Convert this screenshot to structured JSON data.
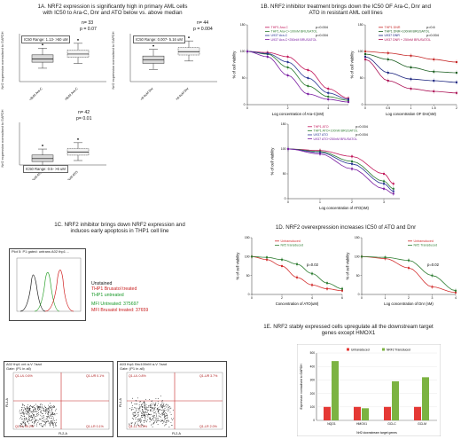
{
  "p1a": {
    "title_line1": "1A. NRF2 expression is significantly high in primary AML cells",
    "title_line2": "with IC50 to Ara-C, Dnr and ATO below vs. above median",
    "ylabel": "Nrf2 expression normalised to GAPDH",
    "plot1": {
      "n": "n= 33",
      "p": "p = 0.07",
      "range": "IC50 Range: 1.13- >50 uM",
      "cats": [
        "<8uM Ara-C",
        ">8uM Ara-C"
      ]
    },
    "plot2": {
      "n": "n= 44",
      "p": "p = 0.004",
      "range": "IC50 Range: 0.007- 5.16 uM",
      "cats": [
        "<0.4uM Dnr",
        ">0.4uM Dnr"
      ]
    },
    "plot3": {
      "n": "n= 42",
      "p": "p= 0.01",
      "range": "IC50 Range: 0.5- >6 uM",
      "cats": [
        "<2.6uM ATO",
        ">2.6uM ATO"
      ]
    }
  },
  "p1b": {
    "title_line1": "1B. NRF2 inhibitor treatment brings down the IC50 OF Ara-C, Dnr and",
    "title_line2": "ATO in resistant AML cell lines",
    "ylabel": "% of cell viability",
    "araC": {
      "xlabel": "Log concentration of Ara-C(nM)",
      "legend": [
        "THP1 Ara-C",
        "THP1 Ara-C+100nM BRUSATOL",
        "U937 Ara-C",
        "U937 Ara-C+250nM BRUSATOL"
      ],
      "pvals": [
        "p=0.004",
        "p=0.004"
      ]
    },
    "dnr": {
      "xlabel": "Log concentration OF Dnr(nM)",
      "legend": [
        "THP1 DNR",
        "THP1 DNR+100nM BRUSATOL",
        "U937 DNR",
        "U937 DNR + 250nM BRUSATOL"
      ],
      "pvals": [
        "p=0.6",
        "p=0.004"
      ]
    },
    "ato": {
      "xlabel": "Log concentration of ATO(nM)",
      "legend": [
        "THP1 ATO",
        "THP1 ATO+100nM BRUSATOL",
        "U937 ATO",
        "U937 ATO+250nM BRUSATOL"
      ],
      "pvals": [
        "p=0.004",
        "p=0.004"
      ]
    }
  },
  "p1c": {
    "title_line1": "1C. NRF2 inhibitor brings down NRF2 expression and",
    "title_line2": "induces early apoptosis in THP1 cell line",
    "hist_header": "Plot 5: P1 gated: untrans A02 thp1 ...",
    "legend": [
      "Unstained",
      "THP1 Brusatol treated",
      "THP1 untreated"
    ],
    "mfi_untreated": "MFI Untreated: 375697",
    "mfi_brusatol": "MFI Brusatol treated: 37659",
    "facs_left_header": "A02 thp1 cnt a-V 7aad",
    "facs_left_gate": "Gate: (P1 in all)",
    "facs_left_quads": [
      "Q1-UL 0.6%",
      "Q1-UR 0.1%",
      "Q1-LL 99.2%",
      "Q1-LR 0.1%"
    ],
    "facs_right_header": "A03 thp1 Bru100nM a-V 7aad",
    "facs_right_gate": "Gate: (P1 in all)",
    "facs_right_quads": [
      "Q1-UL 0.8%",
      "Q1-UR 3.7%",
      "Q1-LL 93.5%",
      "Q1-LR 2.0%"
    ],
    "y_axis": "FL4-A",
    "x_axis": "FL2-A"
  },
  "p1d": {
    "title": "1D. NRF2 overexpression increases IC50 of ATO and Dnr",
    "ylabel": "% of cell viability",
    "ato": {
      "xlabel": "Concentration of ATO(uM)",
      "legend": [
        "Untransduced",
        "Nrf2 transduced"
      ],
      "p": "p=0.02"
    },
    "dnr": {
      "xlabel": "Log concentration of Dnr (nM)",
      "legend": [
        "Untransduced",
        "Nrf2 Transduced"
      ],
      "p": "p=0.02"
    }
  },
  "p1e": {
    "title_line1": "1E. NRF2 stably expressed cells upregulate all the downstream target",
    "title_line2": "genes except HMOX1",
    "ylabel": "Expression normalised to GAPDH",
    "xlabel": "Nrf2 downstream target genes",
    "legend": [
      "Untransduced",
      "NRF2 Transduced"
    ]
  },
  "chart_data": [
    {
      "type": "box",
      "title": "",
      "categories": [
        "<8uM Ara-C",
        ">8uM Ara-C"
      ],
      "ylim": [
        0,
        0.4
      ],
      "values": [
        0.19,
        0.23
      ]
    },
    {
      "type": "box",
      "title": "",
      "categories": [
        "<0.4uM Dnr",
        ">0.4uM Dnr"
      ],
      "ylim": [
        0,
        0.4
      ],
      "values": [
        0.18,
        0.25
      ]
    },
    {
      "type": "box",
      "title": "",
      "categories": [
        "<2.6uM ATO",
        ">2.6uM ATO"
      ],
      "ylim": [
        0,
        0.2
      ],
      "values": [
        0.03,
        0.06
      ]
    },
    {
      "type": "line",
      "title": "",
      "xlabel": "Log concentration of Ara-C(nM)",
      "ylabel": "% of cell viability",
      "x": [
        0,
        1,
        2,
        3,
        4,
        5
      ],
      "ylim": [
        0,
        150
      ],
      "series": [
        {
          "name": "THP1 Ara-C",
          "values": [
            100,
            98,
            90,
            65,
            30,
            12
          ]
        },
        {
          "name": "THP1 Ara-C+100nM BRUSATOL",
          "values": [
            100,
            95,
            70,
            35,
            15,
            8
          ]
        },
        {
          "name": "U937 Ara-C",
          "values": [
            100,
            96,
            80,
            50,
            22,
            10
          ]
        },
        {
          "name": "U937 Ara-C+250nM BRUSATOL",
          "values": [
            100,
            90,
            55,
            20,
            10,
            5
          ]
        }
      ]
    },
    {
      "type": "line",
      "title": "",
      "xlabel": "Log concentration OF Dnr(nM)",
      "ylabel": "% of cell viability",
      "x": [
        0,
        0.5,
        1.0,
        1.5,
        2.0
      ],
      "ylim": [
        0,
        150
      ],
      "series": [
        {
          "name": "THP1 DNR",
          "values": [
            100,
            97,
            92,
            85,
            80
          ]
        },
        {
          "name": "THP1 DNR+100nM BRUSATOL",
          "values": [
            95,
            85,
            70,
            62,
            60
          ]
        },
        {
          "name": "U937 DNR",
          "values": [
            90,
            60,
            48,
            45,
            42
          ]
        },
        {
          "name": "U937 DNR + 250nM BRUSATOL",
          "values": [
            85,
            45,
            30,
            25,
            22
          ]
        }
      ]
    },
    {
      "type": "line",
      "title": "",
      "xlabel": "Log concentration of ATO(nM)",
      "ylabel": "% of cell viability",
      "x": [
        0,
        1,
        2,
        3,
        3.3
      ],
      "ylim": [
        0,
        150
      ],
      "series": [
        {
          "name": "THP1 ATO",
          "values": [
            100,
            97,
            85,
            50,
            30
          ]
        },
        {
          "name": "THP1 ATO+100nM BRUSATOL",
          "values": [
            100,
            95,
            75,
            35,
            20
          ]
        },
        {
          "name": "U937 ATO",
          "values": [
            100,
            93,
            70,
            30,
            15
          ]
        },
        {
          "name": "U937 ATO+250nM BRUSATOL",
          "values": [
            100,
            90,
            60,
            20,
            10
          ]
        }
      ]
    },
    {
      "type": "line",
      "title": "",
      "xlabel": "Concentration of ATO(uM)",
      "ylabel": "% of cell viability",
      "x": [
        0,
        1,
        2,
        3,
        4,
        5,
        6
      ],
      "ylim": [
        0,
        150
      ],
      "series": [
        {
          "name": "Untransduced",
          "values": [
            100,
            92,
            75,
            45,
            25,
            15,
            10
          ]
        },
        {
          "name": "Nrf2 transduced",
          "values": [
            100,
            98,
            92,
            80,
            55,
            30,
            15
          ]
        }
      ]
    },
    {
      "type": "line",
      "title": "",
      "xlabel": "Log concentration of Dnr (nM)",
      "ylabel": "% of cell viability",
      "x": [
        0,
        1,
        2,
        3,
        4
      ],
      "ylim": [
        0,
        150
      ],
      "series": [
        {
          "name": "Untransduced",
          "values": [
            100,
            95,
            70,
            20,
            5
          ]
        },
        {
          "name": "Nrf2 Transduced",
          "values": [
            100,
            98,
            90,
            50,
            10
          ]
        }
      ]
    },
    {
      "type": "bar",
      "title": "",
      "xlabel": "Nrf2 downstream target genes",
      "ylabel": "Expression normalised to GAPDH",
      "categories": [
        "NQO1",
        "HMOX1",
        "GCLC",
        "GCLM"
      ],
      "ylim": [
        0,
        500
      ],
      "series": [
        {
          "name": "Untransduced",
          "values": [
            100,
            100,
            100,
            100
          ]
        },
        {
          "name": "NRF2 Transduced",
          "values": [
            440,
            90,
            290,
            320
          ]
        }
      ]
    }
  ]
}
